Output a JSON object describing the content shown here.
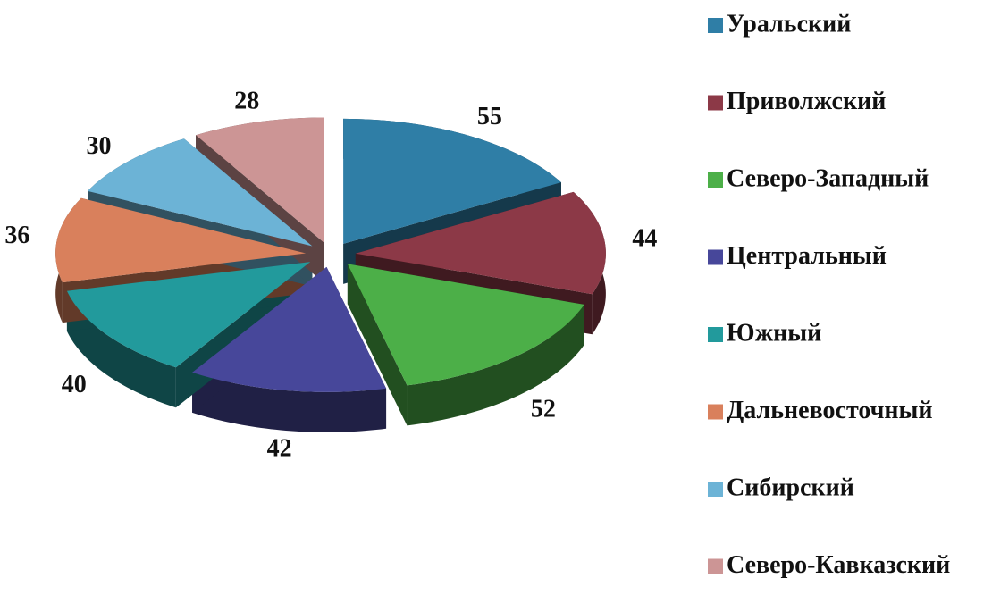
{
  "chart_data": {
    "type": "pie",
    "categories": [
      "Уральский",
      "Приволжский",
      "Северо-Западный",
      "Центральный",
      "Южный",
      "Дальневосточный",
      "Сибирский",
      "Северо-Кавказский"
    ],
    "values": [
      55,
      44,
      52,
      42,
      40,
      36,
      30,
      28
    ],
    "colors": [
      "#2f7ea6",
      "#8c3947",
      "#4caf48",
      "#47479a",
      "#229a9c",
      "#d9805c",
      "#6cb3d6",
      "#cc9595"
    ],
    "legend": "right"
  }
}
